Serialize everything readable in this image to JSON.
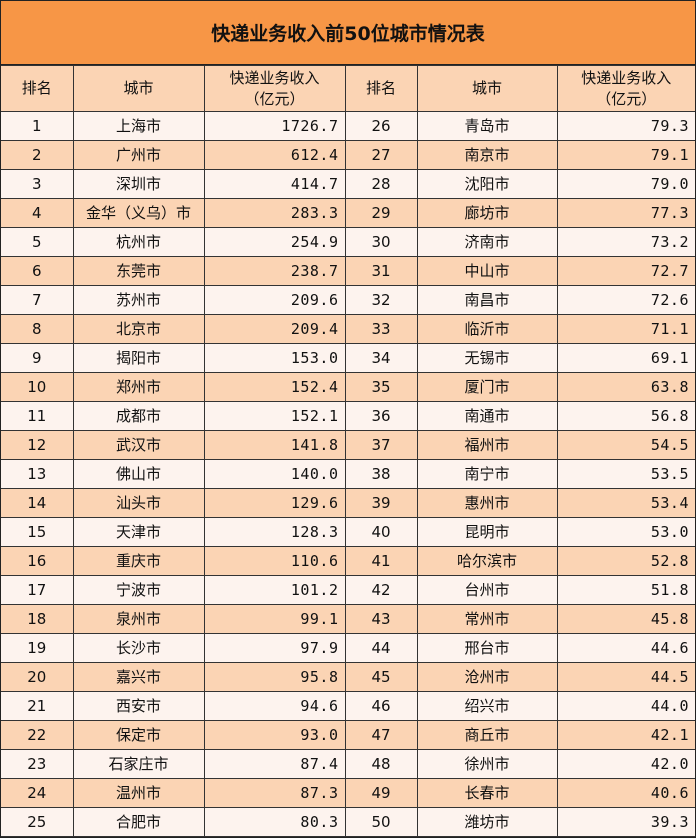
{
  "title": "快递业务收入前50位城市情况表",
  "headers": {
    "rank": "排名",
    "city": "城市",
    "revenue_line1": "快递业务收入",
    "revenue_line2": "（亿元）"
  },
  "colors": {
    "title_bg": "#F79646",
    "header_bg": "#FBD4B4",
    "row_dark": "#FBD4B4",
    "row_light": "#FDF3EE"
  },
  "rows": [
    {
      "rank": "1",
      "city": "上海市",
      "revenue": "1726.7"
    },
    {
      "rank": "2",
      "city": "广州市",
      "revenue": "612.4"
    },
    {
      "rank": "3",
      "city": "深圳市",
      "revenue": "414.7"
    },
    {
      "rank": "4",
      "city": "金华（义乌）市",
      "revenue": "283.3"
    },
    {
      "rank": "5",
      "city": "杭州市",
      "revenue": "254.9"
    },
    {
      "rank": "6",
      "city": "东莞市",
      "revenue": "238.7"
    },
    {
      "rank": "7",
      "city": "苏州市",
      "revenue": "209.6"
    },
    {
      "rank": "8",
      "city": "北京市",
      "revenue": "209.4"
    },
    {
      "rank": "9",
      "city": "揭阳市",
      "revenue": "153.0"
    },
    {
      "rank": "10",
      "city": "郑州市",
      "revenue": "152.4"
    },
    {
      "rank": "11",
      "city": "成都市",
      "revenue": "152.1"
    },
    {
      "rank": "12",
      "city": "武汉市",
      "revenue": "141.8"
    },
    {
      "rank": "13",
      "city": "佛山市",
      "revenue": "140.0"
    },
    {
      "rank": "14",
      "city": "汕头市",
      "revenue": "129.6"
    },
    {
      "rank": "15",
      "city": "天津市",
      "revenue": "128.3"
    },
    {
      "rank": "16",
      "city": "重庆市",
      "revenue": "110.6"
    },
    {
      "rank": "17",
      "city": "宁波市",
      "revenue": "101.2"
    },
    {
      "rank": "18",
      "city": "泉州市",
      "revenue": "99.1"
    },
    {
      "rank": "19",
      "city": "长沙市",
      "revenue": "97.9"
    },
    {
      "rank": "20",
      "city": "嘉兴市",
      "revenue": "95.8"
    },
    {
      "rank": "21",
      "city": "西安市",
      "revenue": "94.6"
    },
    {
      "rank": "22",
      "city": "保定市",
      "revenue": "93.0"
    },
    {
      "rank": "23",
      "city": "石家庄市",
      "revenue": "87.4"
    },
    {
      "rank": "24",
      "city": "温州市",
      "revenue": "87.3"
    },
    {
      "rank": "25",
      "city": "合肥市",
      "revenue": "80.3"
    },
    {
      "rank": "26",
      "city": "青岛市",
      "revenue": "79.3"
    },
    {
      "rank": "27",
      "city": "南京市",
      "revenue": "79.1"
    },
    {
      "rank": "28",
      "city": "沈阳市",
      "revenue": "79.0"
    },
    {
      "rank": "29",
      "city": "廊坊市",
      "revenue": "77.3"
    },
    {
      "rank": "30",
      "city": "济南市",
      "revenue": "73.2"
    },
    {
      "rank": "31",
      "city": "中山市",
      "revenue": "72.7"
    },
    {
      "rank": "32",
      "city": "南昌市",
      "revenue": "72.6"
    },
    {
      "rank": "33",
      "city": "临沂市",
      "revenue": "71.1"
    },
    {
      "rank": "34",
      "city": "无锡市",
      "revenue": "69.1"
    },
    {
      "rank": "35",
      "city": "厦门市",
      "revenue": "63.8"
    },
    {
      "rank": "36",
      "city": "南通市",
      "revenue": "56.8"
    },
    {
      "rank": "37",
      "city": "福州市",
      "revenue": "54.5"
    },
    {
      "rank": "38",
      "city": "南宁市",
      "revenue": "53.5"
    },
    {
      "rank": "39",
      "city": "惠州市",
      "revenue": "53.4"
    },
    {
      "rank": "40",
      "city": "昆明市",
      "revenue": "53.0"
    },
    {
      "rank": "41",
      "city": "哈尔滨市",
      "revenue": "52.8"
    },
    {
      "rank": "42",
      "city": "台州市",
      "revenue": "51.8"
    },
    {
      "rank": "43",
      "city": "常州市",
      "revenue": "45.8"
    },
    {
      "rank": "44",
      "city": "邢台市",
      "revenue": "44.6"
    },
    {
      "rank": "45",
      "city": "沧州市",
      "revenue": "44.5"
    },
    {
      "rank": "46",
      "city": "绍兴市",
      "revenue": "44.0"
    },
    {
      "rank": "47",
      "city": "商丘市",
      "revenue": "42.1"
    },
    {
      "rank": "48",
      "city": "徐州市",
      "revenue": "42.0"
    },
    {
      "rank": "49",
      "city": "长春市",
      "revenue": "40.6"
    },
    {
      "rank": "50",
      "city": "潍坊市",
      "revenue": "39.3"
    }
  ]
}
